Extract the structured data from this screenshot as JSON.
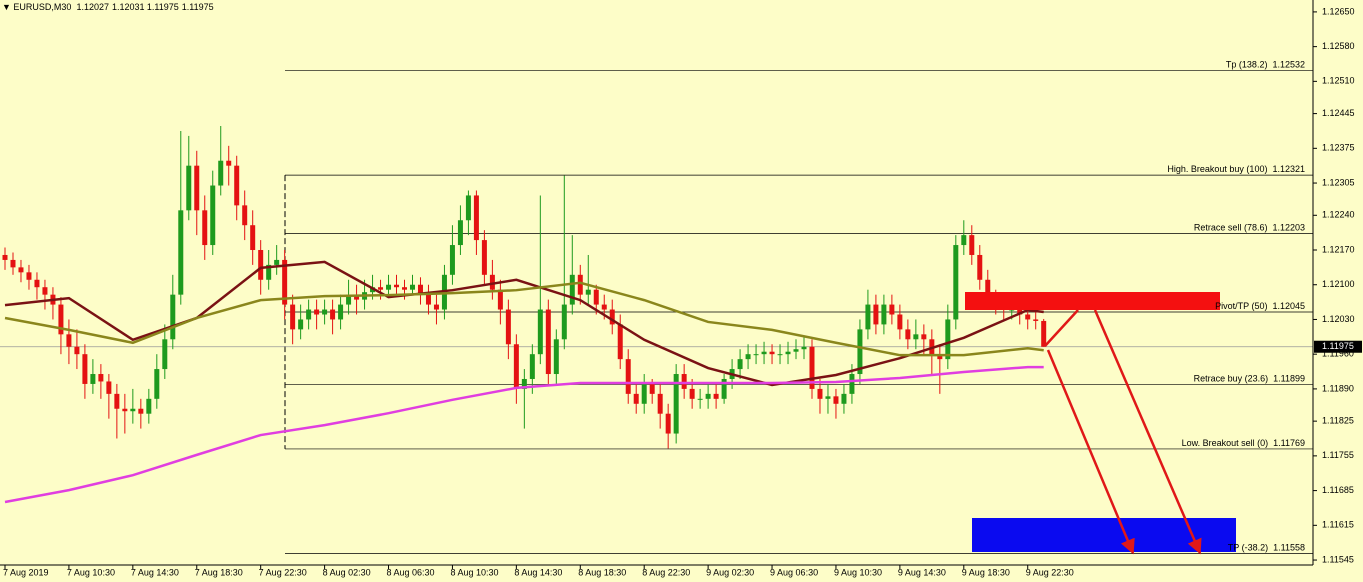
{
  "chart_data": {
    "type": "candlestick",
    "symbol": "EURUSD,M30",
    "up_color": "#1e9a1e",
    "down_color": "#e41212",
    "ylim": [
      1.11535,
      1.12674
    ],
    "yticks": [
      {
        "value": 1.1265,
        "label": "1.12650"
      },
      {
        "value": 1.1258,
        "label": "1.12580"
      },
      {
        "value": 1.1251,
        "label": "1.12510"
      },
      {
        "value": 1.12445,
        "label": "1.12445"
      },
      {
        "value": 1.12375,
        "label": "1.12375"
      },
      {
        "value": 1.12305,
        "label": "1.12305"
      },
      {
        "value": 1.1224,
        "label": "1.12240"
      },
      {
        "value": 1.1217,
        "label": "1.12170"
      },
      {
        "value": 1.121,
        "label": "1.12100"
      },
      {
        "value": 1.1203,
        "label": "1.12030"
      },
      {
        "value": 1.1196,
        "label": "1.11960"
      },
      {
        "value": 1.1189,
        "label": "1.11890"
      },
      {
        "value": 1.11825,
        "label": "1.11825"
      },
      {
        "value": 1.11755,
        "label": "1.11755"
      },
      {
        "value": 1.11685,
        "label": "1.11685"
      },
      {
        "value": 1.11615,
        "label": "1.11615"
      },
      {
        "value": 1.11545,
        "label": "1.11545"
      }
    ],
    "categories": [
      "7 Aug 2019",
      null,
      null,
      null,
      null,
      null,
      null,
      null,
      "7 Aug 10:30",
      null,
      null,
      null,
      null,
      null,
      null,
      null,
      "7 Aug 14:30",
      null,
      null,
      null,
      null,
      null,
      null,
      null,
      "7 Aug 18:30",
      null,
      null,
      null,
      null,
      null,
      null,
      null,
      "7 Aug 22:30",
      null,
      null,
      null,
      null,
      null,
      null,
      null,
      "8 Aug 02:30",
      null,
      null,
      null,
      null,
      null,
      null,
      null,
      "8 Aug 06:30",
      null,
      null,
      null,
      null,
      null,
      null,
      null,
      "8 Aug 10:30",
      null,
      null,
      null,
      null,
      null,
      null,
      null,
      "8 Aug 14:30",
      null,
      null,
      null,
      null,
      null,
      null,
      null,
      "8 Aug 18:30",
      null,
      null,
      null,
      null,
      null,
      null,
      null,
      "8 Aug 22:30",
      null,
      null,
      null,
      null,
      null,
      null,
      null,
      "9 Aug 02:30",
      null,
      null,
      null,
      null,
      null,
      null,
      null,
      "9 Aug 06:30",
      null,
      null,
      null,
      null,
      null,
      null,
      null,
      "9 Aug 10:30",
      null,
      null,
      null,
      null,
      null,
      null,
      null,
      "9 Aug 14:30",
      null,
      null,
      null,
      null,
      null,
      null,
      null,
      "9 Aug 18:30",
      null,
      null,
      null,
      null,
      null,
      null,
      null,
      "9 Aug 22:30",
      null,
      null
    ],
    "ohlc": [
      [
        1.1216,
        1.12175,
        1.1213,
        1.1215
      ],
      [
        1.1215,
        1.12165,
        1.1212,
        1.12135
      ],
      [
        1.12135,
        1.1215,
        1.12105,
        1.12125
      ],
      [
        1.12125,
        1.1214,
        1.1209,
        1.1211
      ],
      [
        1.1211,
        1.12125,
        1.1207,
        1.12095
      ],
      [
        1.12095,
        1.1211,
        1.1205,
        1.1208
      ],
      [
        1.1208,
        1.12095,
        1.1203,
        1.1206
      ],
      [
        1.1206,
        1.12075,
        1.1196,
        1.12
      ],
      [
        1.12,
        1.1203,
        1.1194,
        1.11975
      ],
      [
        1.11975,
        1.1201,
        1.1193,
        1.1196
      ],
      [
        1.1196,
        1.1198,
        1.1187,
        1.119
      ],
      [
        1.119,
        1.1195,
        1.1188,
        1.1192
      ],
      [
        1.1192,
        1.1194,
        1.1187,
        1.11905
      ],
      [
        1.11905,
        1.1192,
        1.1183,
        1.1188
      ],
      [
        1.1188,
        1.119,
        1.1179,
        1.1185
      ],
      [
        1.1185,
        1.1188,
        1.118,
        1.11845
      ],
      [
        1.11845,
        1.1189,
        1.1182,
        1.1185
      ],
      [
        1.1185,
        1.1187,
        1.1181,
        1.1184
      ],
      [
        1.1184,
        1.1189,
        1.1182,
        1.1187
      ],
      [
        1.1187,
        1.1196,
        1.1185,
        1.1193
      ],
      [
        1.1193,
        1.1202,
        1.1191,
        1.1199
      ],
      [
        1.1199,
        1.1212,
        1.1197,
        1.1208
      ],
      [
        1.1208,
        1.1241,
        1.1206,
        1.1225
      ],
      [
        1.1225,
        1.124,
        1.1223,
        1.1234
      ],
      [
        1.1234,
        1.1237,
        1.122,
        1.1225
      ],
      [
        1.1225,
        1.1228,
        1.1215,
        1.1218
      ],
      [
        1.1218,
        1.1233,
        1.1216,
        1.123
      ],
      [
        1.123,
        1.1242,
        1.1228,
        1.1235
      ],
      [
        1.1235,
        1.1238,
        1.123,
        1.1234
      ],
      [
        1.1234,
        1.1236,
        1.1223,
        1.1226
      ],
      [
        1.1226,
        1.1229,
        1.1219,
        1.1222
      ],
      [
        1.1222,
        1.1225,
        1.1214,
        1.1217
      ],
      [
        1.1217,
        1.1219,
        1.1208,
        1.1211
      ],
      [
        1.1211,
        1.1217,
        1.1209,
        1.1214
      ],
      [
        1.1214,
        1.1218,
        1.1212,
        1.1215
      ],
      [
        1.1215,
        1.1217,
        1.1203,
        1.1206
      ],
      [
        1.1206,
        1.1208,
        1.1198,
        1.1201
      ],
      [
        1.1201,
        1.1206,
        1.1199,
        1.1203
      ],
      [
        1.1203,
        1.1207,
        1.1201,
        1.1205
      ],
      [
        1.1205,
        1.1207,
        1.1201,
        1.1204
      ],
      [
        1.1204,
        1.1207,
        1.1202,
        1.1205
      ],
      [
        1.1205,
        1.1207,
        1.12,
        1.1203
      ],
      [
        1.1203,
        1.1208,
        1.1201,
        1.1206
      ],
      [
        1.1206,
        1.1211,
        1.1204,
        1.1208
      ],
      [
        1.1208,
        1.121,
        1.1204,
        1.1207
      ],
      [
        1.1207,
        1.1211,
        1.1205,
        1.12085
      ],
      [
        1.12085,
        1.1212,
        1.1207,
        1.12095
      ],
      [
        1.12095,
        1.1211,
        1.1207,
        1.1209
      ],
      [
        1.1209,
        1.1212,
        1.1208,
        1.121
      ],
      [
        1.121,
        1.1212,
        1.1208,
        1.12095
      ],
      [
        1.12095,
        1.1211,
        1.1207,
        1.1209
      ],
      [
        1.1209,
        1.1212,
        1.1208,
        1.121
      ],
      [
        1.121,
        1.12115,
        1.1206,
        1.1208
      ],
      [
        1.1208,
        1.121,
        1.1204,
        1.1206
      ],
      [
        1.1206,
        1.1208,
        1.1202,
        1.1205
      ],
      [
        1.1205,
        1.1214,
        1.1203,
        1.1212
      ],
      [
        1.1212,
        1.1222,
        1.121,
        1.1218
      ],
      [
        1.1218,
        1.1226,
        1.1216,
        1.1223
      ],
      [
        1.1223,
        1.1229,
        1.122,
        1.1228
      ],
      [
        1.1228,
        1.1229,
        1.1216,
        1.1219
      ],
      [
        1.1219,
        1.1221,
        1.121,
        1.1212
      ],
      [
        1.1212,
        1.1215,
        1.1207,
        1.1209
      ],
      [
        1.1209,
        1.1211,
        1.1202,
        1.1205
      ],
      [
        1.1205,
        1.1207,
        1.1195,
        1.1198
      ],
      [
        1.1198,
        1.12,
        1.1186,
        1.1189
      ],
      [
        1.1189,
        1.1193,
        1.1181,
        1.1191
      ],
      [
        1.1191,
        1.1198,
        1.1188,
        1.1196
      ],
      [
        1.1196,
        1.1228,
        1.1194,
        1.1205
      ],
      [
        1.1205,
        1.1207,
        1.119,
        1.1192
      ],
      [
        1.1192,
        1.1201,
        1.119,
        1.1199
      ],
      [
        1.1199,
        1.1232,
        1.1197,
        1.1206
      ],
      [
        1.1206,
        1.122,
        1.1204,
        1.1212
      ],
      [
        1.1212,
        1.1214,
        1.1206,
        1.1208
      ],
      [
        1.1208,
        1.1216,
        1.1206,
        1.1209
      ],
      [
        1.1209,
        1.121,
        1.1204,
        1.1206
      ],
      [
        1.1206,
        1.1208,
        1.1203,
        1.1205
      ],
      [
        1.1205,
        1.1207,
        1.12,
        1.1202
      ],
      [
        1.1202,
        1.1204,
        1.1193,
        1.1195
      ],
      [
        1.1195,
        1.1197,
        1.1186,
        1.1188
      ],
      [
        1.1188,
        1.119,
        1.1184,
        1.1186
      ],
      [
        1.1186,
        1.1192,
        1.1184,
        1.119
      ],
      [
        1.119,
        1.1191,
        1.1186,
        1.1188
      ],
      [
        1.1188,
        1.119,
        1.1181,
        1.1184
      ],
      [
        1.1184,
        1.1186,
        1.1177,
        1.118
      ],
      [
        1.118,
        1.1194,
        1.1178,
        1.1192
      ],
      [
        1.1192,
        1.1194,
        1.1187,
        1.1189
      ],
      [
        1.1189,
        1.1191,
        1.1185,
        1.1187
      ],
      [
        1.1187,
        1.1189,
        1.1185,
        1.1187
      ],
      [
        1.1187,
        1.119,
        1.1185,
        1.1188
      ],
      [
        1.1188,
        1.119,
        1.1185,
        1.1187
      ],
      [
        1.1187,
        1.1192,
        1.1186,
        1.1191
      ],
      [
        1.1191,
        1.1195,
        1.1189,
        1.1193
      ],
      [
        1.1193,
        1.1197,
        1.1191,
        1.1195
      ],
      [
        1.1195,
        1.1198,
        1.1193,
        1.1196
      ],
      [
        1.1196,
        1.1198,
        1.1194,
        1.1196
      ],
      [
        1.1196,
        1.11985,
        1.1194,
        1.11965
      ],
      [
        1.11965,
        1.1198,
        1.1194,
        1.1196
      ],
      [
        1.1196,
        1.1198,
        1.1194,
        1.1196
      ],
      [
        1.1196,
        1.11985,
        1.1194,
        1.11965
      ],
      [
        1.11965,
        1.1199,
        1.1195,
        1.1197
      ],
      [
        1.1197,
        1.11995,
        1.1195,
        1.11975
      ],
      [
        1.11975,
        1.1199,
        1.1187,
        1.1189
      ],
      [
        1.1189,
        1.1191,
        1.1184,
        1.1187
      ],
      [
        1.1187,
        1.119,
        1.1184,
        1.11875
      ],
      [
        1.11875,
        1.1189,
        1.1183,
        1.1186
      ],
      [
        1.1186,
        1.119,
        1.1184,
        1.1188
      ],
      [
        1.1188,
        1.1194,
        1.1186,
        1.1192
      ],
      [
        1.1192,
        1.1203,
        1.119,
        1.1201
      ],
      [
        1.1201,
        1.1209,
        1.1199,
        1.1206
      ],
      [
        1.1206,
        1.1208,
        1.12,
        1.1202
      ],
      [
        1.1202,
        1.1208,
        1.12,
        1.1206
      ],
      [
        1.1206,
        1.1208,
        1.1202,
        1.1204
      ],
      [
        1.1204,
        1.1206,
        1.1199,
        1.1201
      ],
      [
        1.1201,
        1.1203,
        1.1197,
        1.1199
      ],
      [
        1.1199,
        1.1203,
        1.1197,
        1.12
      ],
      [
        1.12,
        1.1202,
        1.1196,
        1.1199
      ],
      [
        1.1199,
        1.1201,
        1.1192,
        1.1196
      ],
      [
        1.1196,
        1.1198,
        1.1188,
        1.1195
      ],
      [
        1.1195,
        1.1206,
        1.1193,
        1.1203
      ],
      [
        1.1203,
        1.122,
        1.1201,
        1.1218
      ],
      [
        1.1218,
        1.1223,
        1.1216,
        1.122
      ],
      [
        1.122,
        1.1222,
        1.1214,
        1.1216
      ],
      [
        1.1216,
        1.1218,
        1.1209,
        1.1211
      ],
      [
        1.1211,
        1.1213,
        1.1205,
        1.1207
      ],
      [
        1.1207,
        1.1209,
        1.1204,
        1.1206
      ],
      [
        1.1206,
        1.1208,
        1.1203,
        1.1205
      ],
      [
        1.1205,
        1.1207,
        1.1203,
        1.1205
      ],
      [
        1.1205,
        1.1206,
        1.1202,
        1.1204
      ],
      [
        1.1204,
        1.12055,
        1.1201,
        1.1203
      ],
      [
        1.1203,
        1.1205,
        1.1201,
        1.12027
      ],
      [
        1.12027,
        1.12031,
        1.11975,
        1.11975
      ]
    ],
    "series": [
      {
        "color": "#7a1214",
        "x": [
          0,
          8,
          16,
          24,
          32,
          40,
          48,
          56,
          64,
          72,
          80,
          88,
          96,
          104,
          112,
          120,
          128,
          130
        ],
        "values": [
          1.12059,
          1.12073,
          1.11989,
          1.12033,
          1.12134,
          1.12146,
          1.12075,
          1.12089,
          1.1211,
          1.12069,
          1.11989,
          1.11932,
          1.11898,
          1.11918,
          1.11952,
          1.11993,
          1.12049,
          1.12045
        ]
      },
      {
        "color": "#8a861c",
        "x": [
          0,
          8,
          16,
          24,
          32,
          40,
          48,
          56,
          64,
          72,
          80,
          88,
          96,
          104,
          112,
          120,
          128,
          130
        ],
        "values": [
          1.12033,
          1.12009,
          1.11983,
          1.12033,
          1.12069,
          1.12077,
          1.12079,
          1.12083,
          1.12089,
          1.12104,
          1.12069,
          1.12025,
          1.12009,
          1.11983,
          1.11958,
          1.11958,
          1.11972,
          1.11968
        ]
      },
      {
        "color": "#e03ee0",
        "x": [
          0,
          8,
          16,
          24,
          32,
          40,
          48,
          56,
          64,
          72,
          80,
          88,
          96,
          104,
          112,
          120,
          128,
          130
        ],
        "values": [
          1.11662,
          1.11686,
          1.11716,
          1.11757,
          1.11797,
          1.11817,
          1.11841,
          1.11868,
          1.11892,
          1.11902,
          1.11902,
          1.11902,
          1.11902,
          1.11904,
          1.11912,
          1.11924,
          1.11934,
          1.11934
        ]
      }
    ],
    "levels": [
      {
        "label": "Tp (138.2)",
        "price": 1.12532
      },
      {
        "label": "High. Breakout buy (100)",
        "price": 1.12321
      },
      {
        "label": "Retrace sell (78.6)",
        "price": 1.12203
      },
      {
        "label": "Pivot/TP (50)",
        "price": 1.12045
      },
      {
        "label": "Retrace buy (23.6)",
        "price": 1.11899
      },
      {
        "label": "Low. Breakout sell (0)",
        "price": 1.11769
      },
      {
        "label": "TP (-38.2)",
        "price": 1.11558
      }
    ]
  }
}
